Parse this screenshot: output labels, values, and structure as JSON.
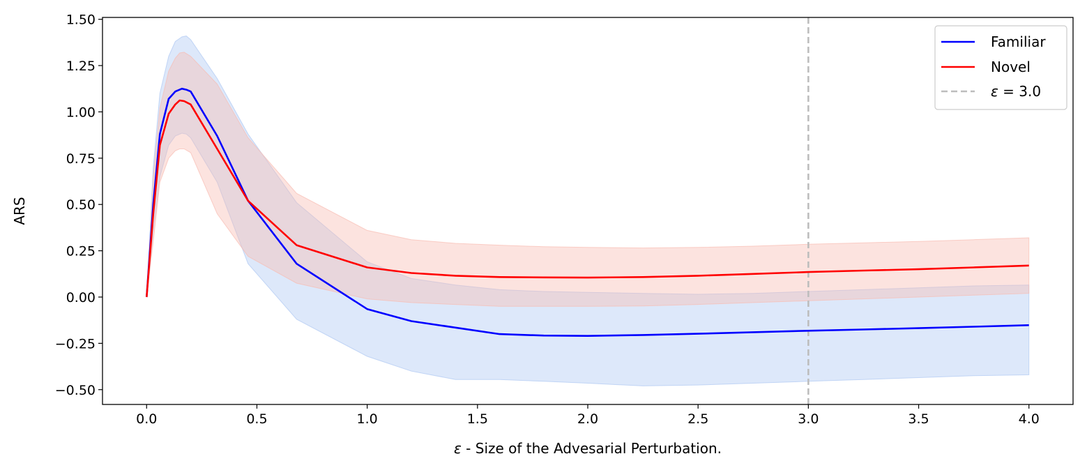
{
  "chart_data": {
    "type": "line",
    "title": "",
    "xlabel_symbol": "ε",
    "xlabel_text": " - Size of the Advesarial Perturbation.",
    "ylabel": "ARS",
    "xlim": [
      -0.2,
      4.2
    ],
    "ylim": [
      -0.58,
      1.51
    ],
    "xticks": [
      0.0,
      0.5,
      1.0,
      1.5,
      2.0,
      2.5,
      3.0,
      3.5,
      4.0
    ],
    "xtick_labels": [
      "0.0",
      "0.5",
      "1.0",
      "1.5",
      "2.0",
      "2.5",
      "3.0",
      "3.5",
      "4.0"
    ],
    "yticks": [
      -0.5,
      -0.25,
      0.0,
      0.25,
      0.5,
      0.75,
      1.0,
      1.25,
      1.5
    ],
    "ytick_labels": [
      "−0.50",
      "−0.25",
      "0.00",
      "0.25",
      "0.50",
      "0.75",
      "1.00",
      "1.25",
      "1.50"
    ],
    "grid": false,
    "legend_position": "top-right",
    "series": [
      {
        "name": "Familiar",
        "color": "#0000ff",
        "band_color": "#aec7f2",
        "x": [
          0,
          0.03,
          0.06,
          0.1,
          0.13,
          0.16,
          0.18,
          0.2,
          0.32,
          0.46,
          0.68,
          1.0,
          1.2,
          1.4,
          1.6,
          1.8,
          2.0,
          2.25,
          2.5,
          2.75,
          3.0,
          3.25,
          3.5,
          3.75,
          4.0
        ],
        "y": [
          0,
          0.5,
          0.88,
          1.07,
          1.11,
          1.125,
          1.12,
          1.11,
          0.87,
          0.52,
          0.18,
          -0.065,
          -0.13,
          -0.165,
          -0.2,
          -0.208,
          -0.21,
          -0.205,
          -0.198,
          -0.19,
          -0.182,
          -0.175,
          -0.168,
          -0.16,
          -0.152
        ],
        "lower": [
          0,
          0.35,
          0.65,
          0.82,
          0.87,
          0.885,
          0.88,
          0.86,
          0.62,
          0.18,
          -0.12,
          -0.32,
          -0.4,
          -0.445,
          -0.445,
          -0.455,
          -0.465,
          -0.48,
          -0.475,
          -0.465,
          -0.455,
          -0.445,
          -0.435,
          -0.425,
          -0.42
        ],
        "upper": [
          0,
          0.7,
          1.1,
          1.3,
          1.38,
          1.405,
          1.41,
          1.39,
          1.18,
          0.88,
          0.51,
          0.19,
          0.1,
          0.065,
          0.04,
          0.03,
          0.025,
          0.02,
          0.015,
          0.02,
          0.03,
          0.04,
          0.05,
          0.06,
          0.065
        ]
      },
      {
        "name": "Novel",
        "color": "#ff0000",
        "band_color": "#f8bcb2",
        "x": [
          0,
          0.03,
          0.06,
          0.1,
          0.13,
          0.15,
          0.17,
          0.2,
          0.32,
          0.46,
          0.68,
          1.0,
          1.2,
          1.4,
          1.6,
          1.8,
          2.0,
          2.25,
          2.5,
          2.75,
          3.0,
          3.25,
          3.5,
          3.75,
          4.0
        ],
        "y": [
          0,
          0.45,
          0.82,
          0.99,
          1.04,
          1.062,
          1.058,
          1.04,
          0.8,
          0.52,
          0.28,
          0.16,
          0.13,
          0.115,
          0.108,
          0.106,
          0.105,
          0.108,
          0.115,
          0.125,
          0.135,
          0.143,
          0.15,
          0.16,
          0.17
        ],
        "lower": [
          0,
          0.3,
          0.62,
          0.75,
          0.79,
          0.8,
          0.8,
          0.78,
          0.45,
          0.22,
          0.075,
          -0.01,
          -0.03,
          -0.04,
          -0.05,
          -0.05,
          -0.05,
          -0.048,
          -0.04,
          -0.03,
          -0.02,
          -0.01,
          0.0,
          0.01,
          0.02
        ],
        "upper": [
          0,
          0.65,
          1.02,
          1.22,
          1.29,
          1.318,
          1.322,
          1.3,
          1.15,
          0.86,
          0.56,
          0.36,
          0.31,
          0.29,
          0.28,
          0.272,
          0.268,
          0.265,
          0.268,
          0.275,
          0.285,
          0.293,
          0.3,
          0.31,
          0.32
        ]
      }
    ],
    "vline": {
      "x": 3.0,
      "color": "#bdbdbd",
      "label_symbol": "ε",
      "label_text": " = 3.0"
    }
  }
}
